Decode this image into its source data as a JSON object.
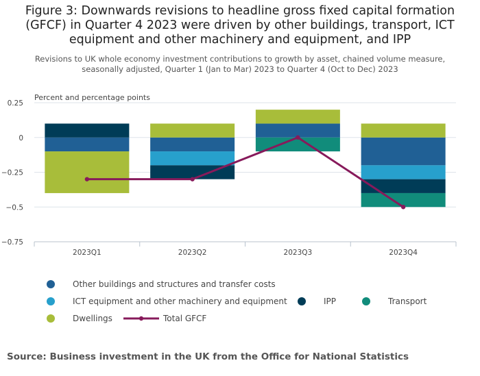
{
  "title": "Figure 3: Downwards revisions to headline gross fixed capital formation (GFCF) in Quarter 4 2023 were driven by other buildings, transport, ICT equipment and other machinery and equipment, and IPP",
  "subtitle": "Revisions to UK whole economy investment contributions to growth by asset, chained volume measure, seasonally adjusted, Quarter 1 (Jan to Mar) 2023 to Quarter 4 (Oct to Dec) 2023",
  "source": "Source: Business investment in the UK from the Office for National Statistics",
  "chart_data": {
    "type": "bar",
    "stacked": true,
    "ylabel": "Percent and percentage points",
    "categories": [
      "2023Q1",
      "2023Q2",
      "2023Q3",
      "2023Q4"
    ],
    "ylim": [
      -0.75,
      0.25
    ],
    "yticks": [
      0.25,
      0,
      -0.25,
      -0.5,
      -0.75
    ],
    "ytick_labels": [
      "0.25",
      "0",
      "−0.25",
      "−0.5",
      "−0.75"
    ],
    "series": [
      {
        "name": "Other buildings and structures and transfer costs",
        "color": "#206095",
        "values": [
          -0.1,
          -0.1,
          0.1,
          -0.2
        ]
      },
      {
        "name": "ICT equipment and other machinery and equipment",
        "color": "#27a0cc",
        "values": [
          0,
          -0.1,
          0,
          -0.1
        ]
      },
      {
        "name": "IPP",
        "color": "#003c57",
        "values": [
          0.1,
          -0.1,
          0,
          -0.1
        ]
      },
      {
        "name": "Transport",
        "color": "#118c7b",
        "values": [
          0,
          0,
          -0.1,
          -0.1
        ]
      },
      {
        "name": "Dwellings",
        "color": "#a8bd3a",
        "values": [
          -0.3,
          0.1,
          0.1,
          0.1
        ]
      }
    ],
    "line": {
      "name": "Total GFCF",
      "color": "#871a5b",
      "values": [
        -0.3,
        -0.3,
        0,
        -0.5
      ]
    },
    "grid": true,
    "legend_position": "bottom"
  }
}
